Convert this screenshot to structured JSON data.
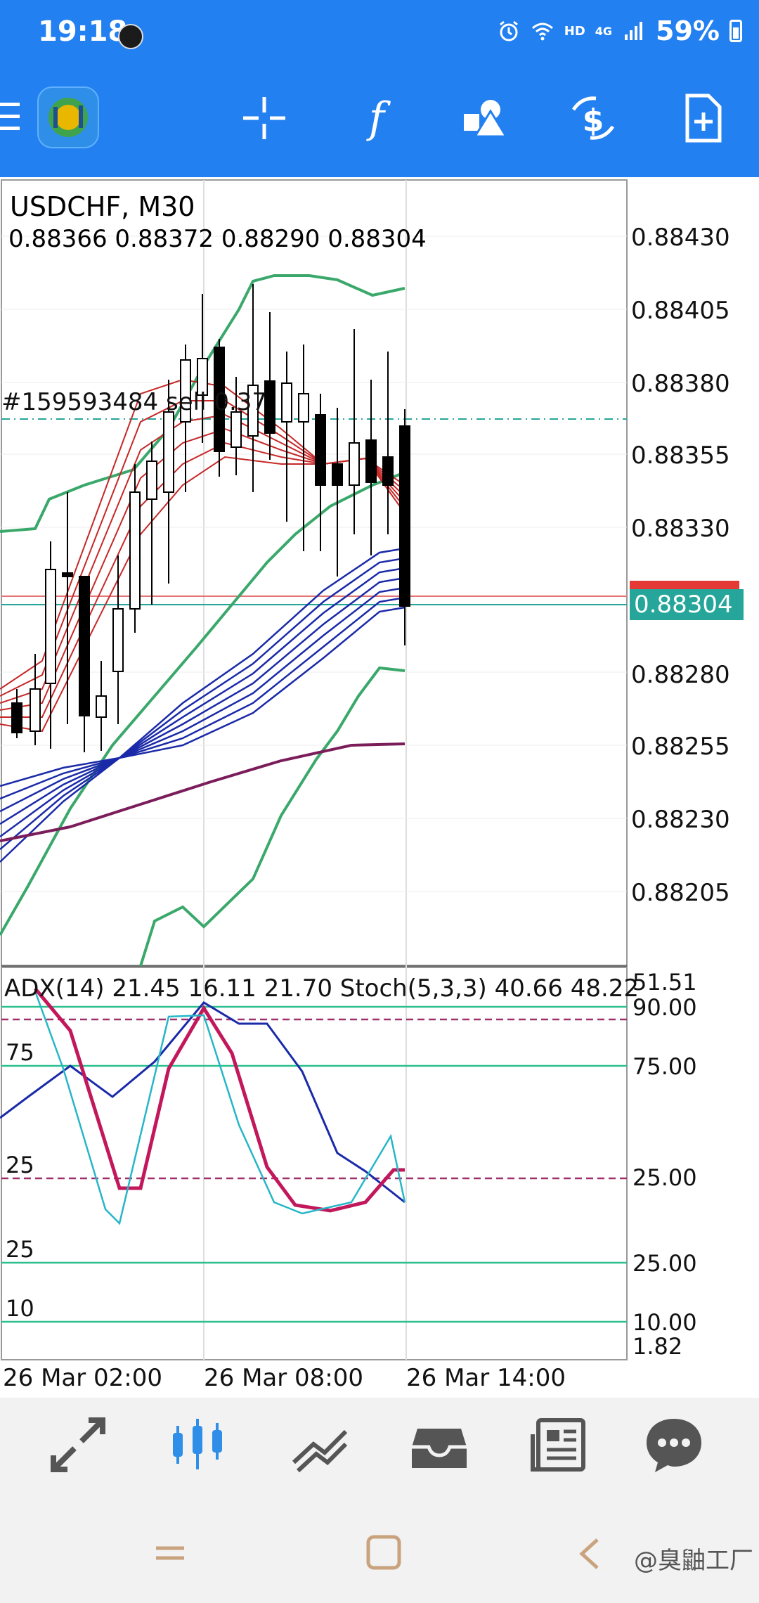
{
  "status_bar": {
    "time": "19:18",
    "battery": "59%",
    "network": "HD",
    "network_gen": "4G",
    "icons": [
      "alarm-icon",
      "wifi-icon",
      "signal-icon",
      "battery-icon"
    ]
  },
  "toolbar": {
    "icons": [
      "menu-icon",
      "app-logo-icon",
      "crosshair-icon",
      "function-icon",
      "objects-icon",
      "trade-icon",
      "new-order-icon"
    ],
    "accent": "#2380f0"
  },
  "chart": {
    "symbol": "USDCHF, M30",
    "ohlc": "0.88366 0.88372 0.88290 0.88304",
    "order_label": "#159593484 sell 0.37",
    "current_price": "0.88304",
    "price_axis": [
      "0.88430",
      "0.88405",
      "0.88380",
      "0.88355",
      "0.88330",
      "0.88280",
      "0.88255",
      "0.88230",
      "0.88205"
    ],
    "colors": {
      "bull_candle": "#ffffff",
      "bear_candle": "#000000",
      "bollinger": "#3aa86b",
      "ema_red": "#c62828",
      "ema_blue": "#1a2aa8",
      "ma_purple": "#7b1d5a",
      "price_tag": "#26a69a",
      "order_line": "#26a69a"
    }
  },
  "indicator": {
    "text": "ADX(14) 21.45 16.11 21.70 Stoch(5,3,3) 40.66 48.22",
    "right_levels": [
      "51.51",
      "90.00",
      "75.00",
      "25.00",
      "25.00",
      "10.00",
      "1.82"
    ],
    "left_levels": [
      "75",
      "25",
      "25",
      "10"
    ]
  },
  "time_axis": [
    "26 Mar 02:00",
    "26 Mar 08:00",
    "26 Mar 14:00"
  ],
  "bottom_nav": {
    "items": [
      "quotes-icon",
      "chart-icon",
      "trade-icon",
      "history-icon",
      "news-icon",
      "messages-icon"
    ],
    "active": 1
  },
  "watermark": "@臭鼬工厂"
}
